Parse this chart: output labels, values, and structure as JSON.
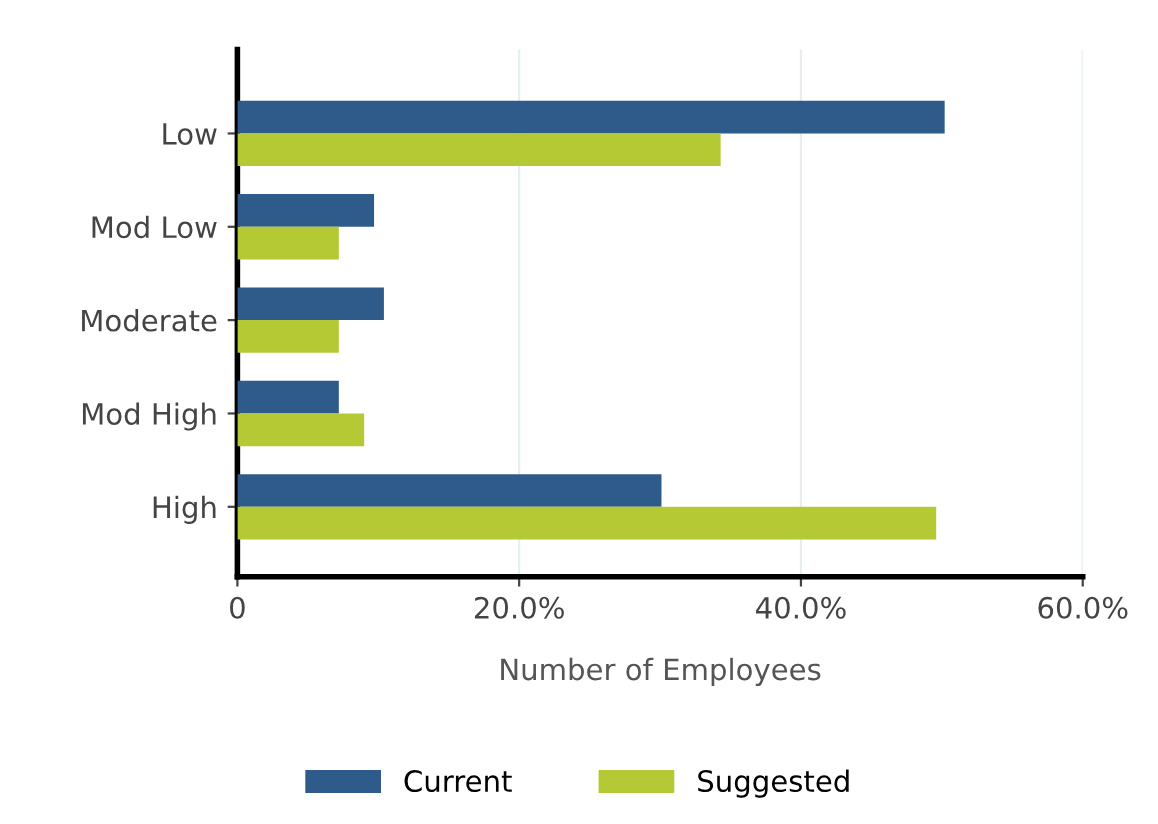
{
  "chart_data": {
    "type": "bar",
    "orientation": "horizontal",
    "xlabel": "Number of Employees",
    "categories": [
      "Low",
      "Mod Low",
      "Moderate",
      "Mod High",
      "High"
    ],
    "series": [
      {
        "name": "Current",
        "color": "#2f5b8a",
        "values": [
          50.2,
          9.7,
          10.4,
          7.2,
          30.1
        ]
      },
      {
        "name": "Suggested",
        "color": "#b5c934",
        "values": [
          34.3,
          7.2,
          7.2,
          9.0,
          49.6
        ]
      }
    ],
    "xlim": [
      0,
      60
    ],
    "xticks": [
      {
        "value": 0,
        "label": "0"
      },
      {
        "value": 20,
        "label": "20.0%"
      },
      {
        "value": 40,
        "label": "40.0%"
      },
      {
        "value": 60,
        "label": "60.0%"
      }
    ],
    "grid": "x",
    "legend": "bottom"
  }
}
